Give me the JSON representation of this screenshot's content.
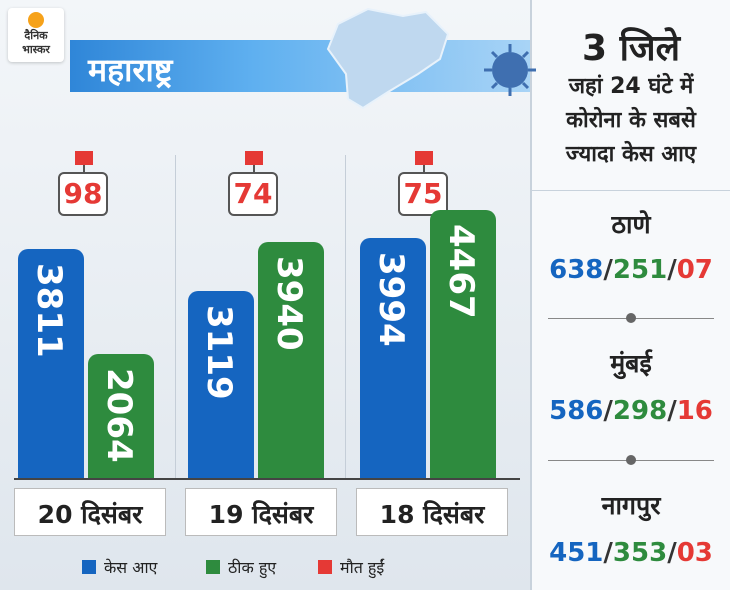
{
  "logo": {
    "line1": "दैनिक",
    "line2": "भास्कर"
  },
  "header": {
    "state": "महाराष्ट्र"
  },
  "colors": {
    "cases": "#1565c0",
    "recovered": "#2e8b3e",
    "deaths": "#e53935"
  },
  "chart_data": {
    "type": "bar",
    "categories": [
      "20 दिसंबर",
      "19 दिसंबर",
      "18 दिसंबर"
    ],
    "series": [
      {
        "name": "केस आए",
        "values": [
          3811,
          3119,
          3994
        ]
      },
      {
        "name": "ठीक हुए",
        "values": [
          2064,
          3940,
          4467
        ]
      },
      {
        "name": "मौत हुईं",
        "values": [
          98,
          74,
          75
        ]
      }
    ],
    "legend_position": "bottom"
  },
  "legend": {
    "cases": "केस आए",
    "recovered": "ठीक हुए",
    "deaths": "मौत हुईं"
  },
  "sidebar": {
    "title_line1": "3 जिले",
    "title_line2": "जहां 24 घंटे में",
    "title_line3": "कोरोना के सबसे",
    "title_line4": "ज्यादा केस आए",
    "districts": [
      {
        "name": "ठाणे",
        "cases": "638",
        "recovered": "251",
        "deaths": "07"
      },
      {
        "name": "मुंबई",
        "cases": "586",
        "recovered": "298",
        "deaths": "16"
      },
      {
        "name": "नागपुर",
        "cases": "451",
        "recovered": "353",
        "deaths": "03"
      }
    ],
    "slash": "/"
  }
}
